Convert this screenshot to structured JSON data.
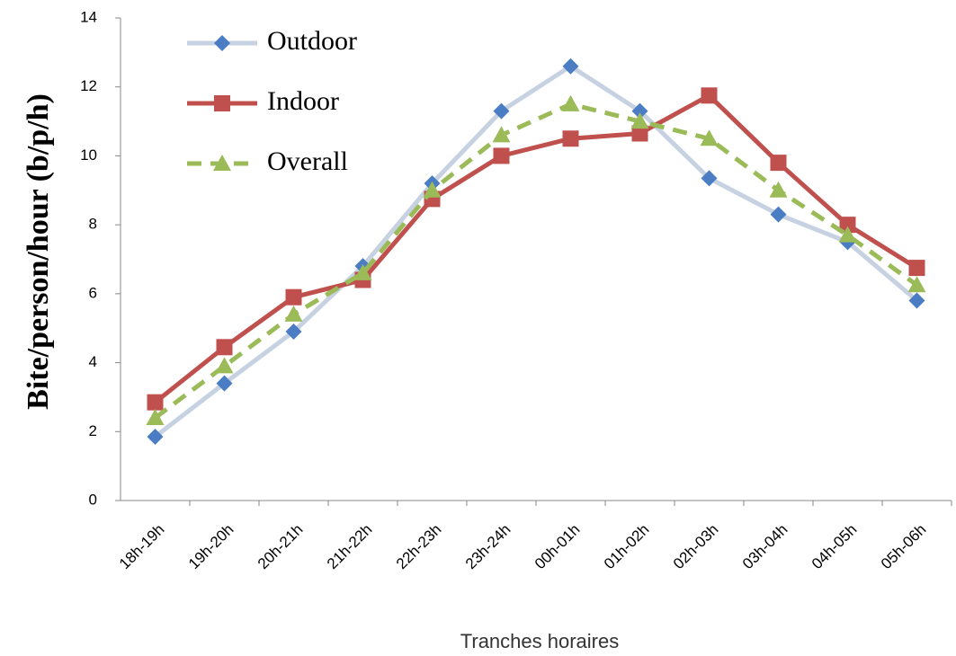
{
  "chart_data": {
    "type": "line",
    "y_label": "Bite/person/hour (b/p/h)",
    "x_label": "Tranches horaires",
    "categories": [
      "18h-19h",
      "19h-20h",
      "20h-21h",
      "21h-22h",
      "22h-23h",
      "23h-24h",
      "00h-01h",
      "01h-02h",
      "02h-03h",
      "03h-04h",
      "04h-05h",
      "05h-06h"
    ],
    "series": [
      {
        "name": "Outdoor",
        "color": "#c6d1e2",
        "marker_color": "#4a7dc3",
        "marker": "diamond",
        "dashed": false,
        "values": [
          1.85,
          3.4,
          4.9,
          6.8,
          9.2,
          11.3,
          12.6,
          11.3,
          9.35,
          8.3,
          7.5,
          5.8
        ]
      },
      {
        "name": "Indoor",
        "color": "#c0504d",
        "marker_color": "#c0504d",
        "marker": "square",
        "dashed": false,
        "values": [
          2.85,
          4.45,
          5.9,
          6.4,
          8.75,
          10.0,
          10.5,
          10.65,
          11.75,
          9.8,
          8.0,
          6.75
        ]
      },
      {
        "name": "Overall",
        "color": "#9bbb59",
        "marker_color": "#9bbb59",
        "marker": "triangle",
        "dashed": true,
        "values": [
          2.4,
          3.9,
          5.4,
          6.6,
          9.0,
          10.6,
          11.5,
          11.0,
          10.5,
          9.0,
          7.7,
          6.25
        ]
      }
    ],
    "ylim": [
      0,
      14
    ],
    "yticks": [
      0,
      2,
      4,
      6,
      8,
      10,
      12,
      14
    ],
    "legend": "top-left",
    "grid": false
  }
}
